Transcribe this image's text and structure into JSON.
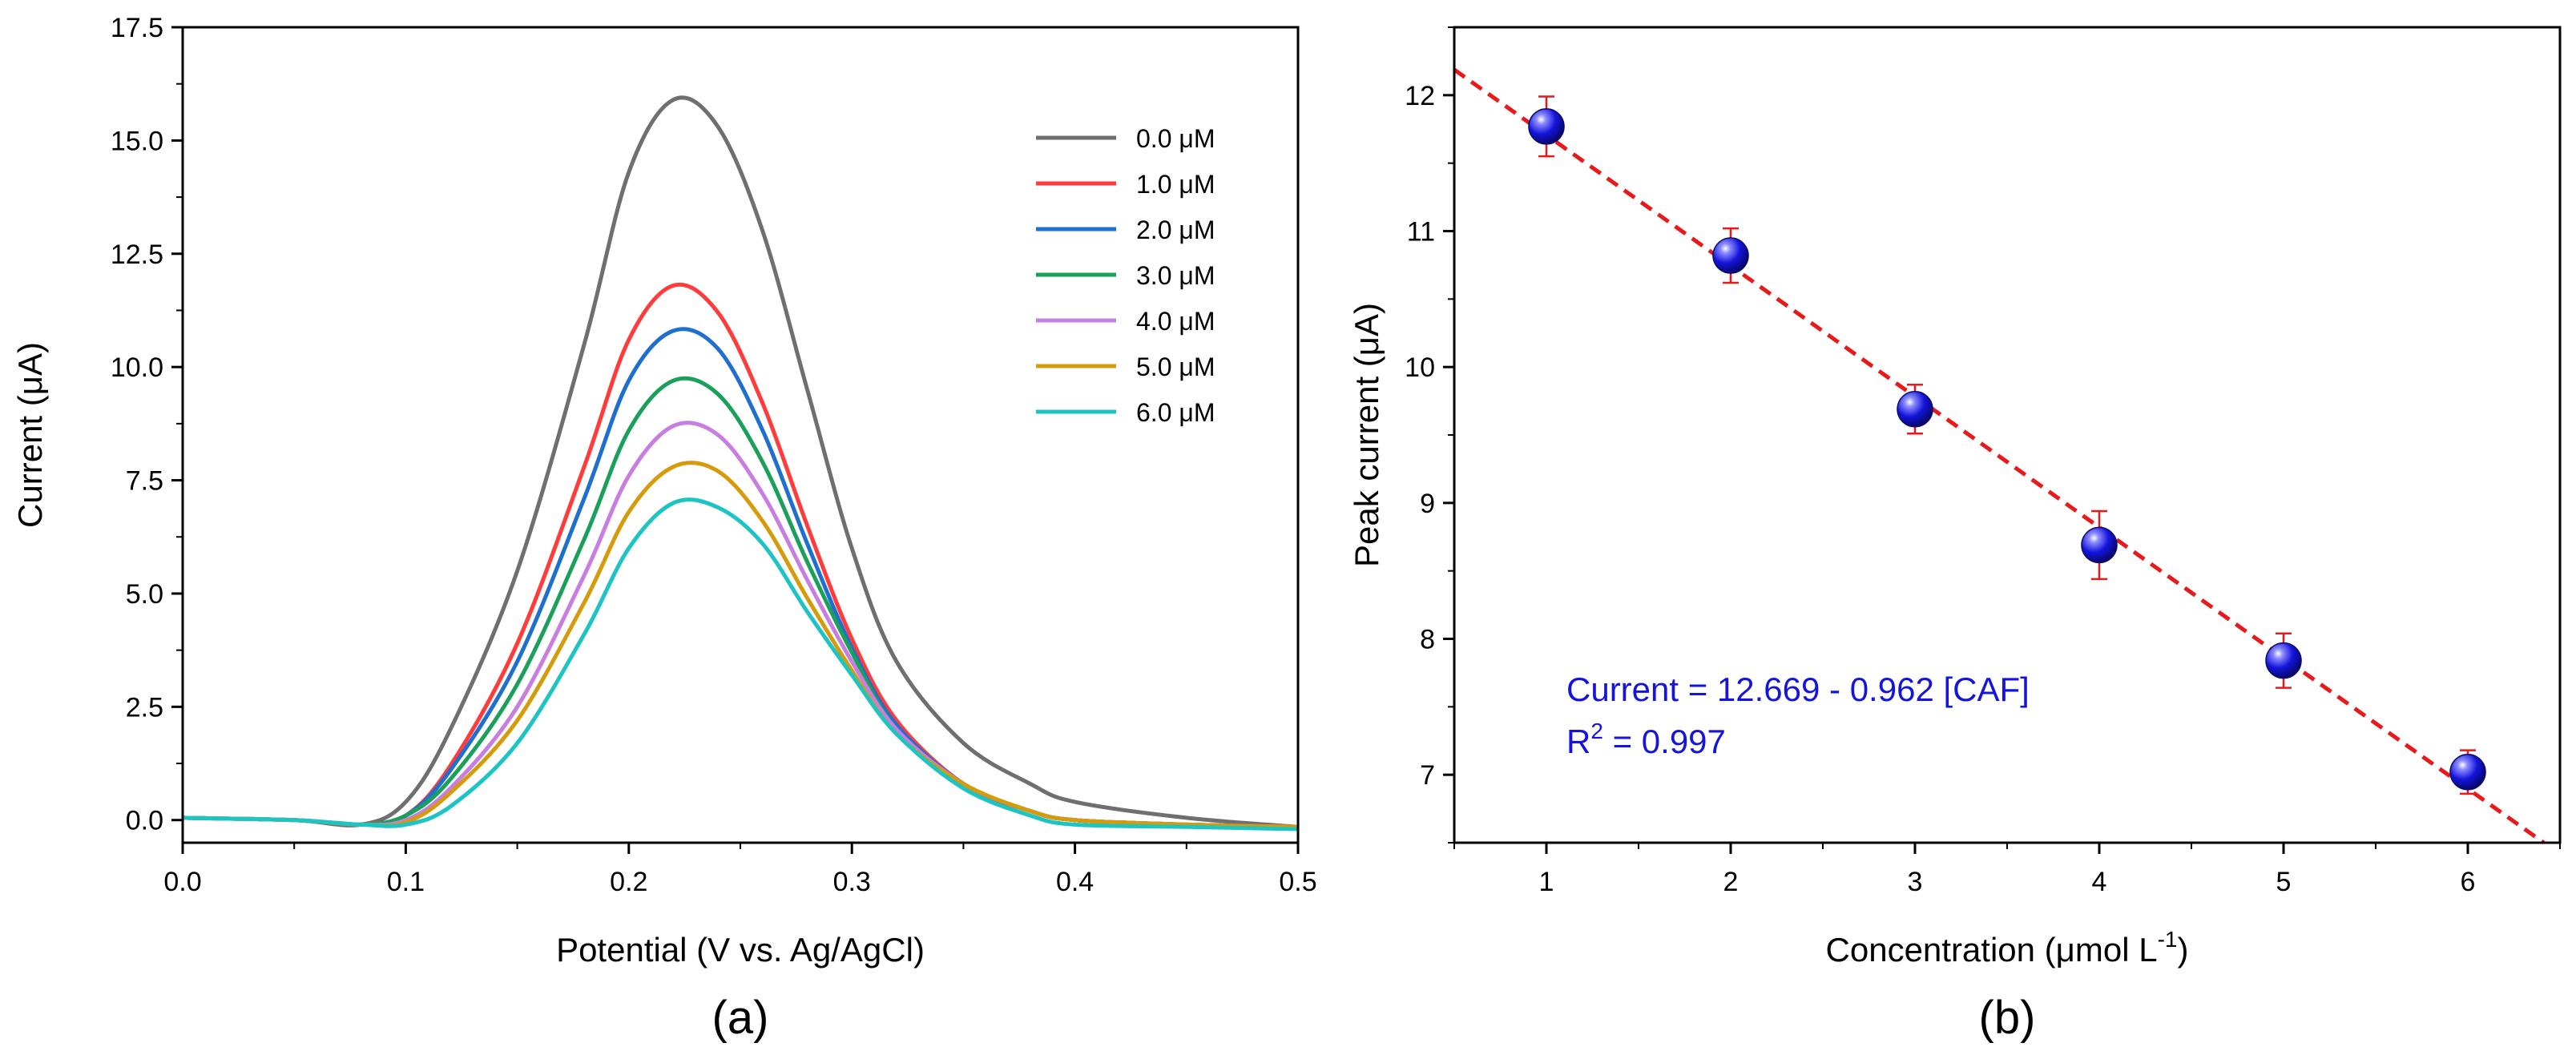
{
  "chart_data": [
    {
      "type": "line",
      "panel_label": "(a)",
      "xlabel": "Potential (V vs. Ag/AgCl)",
      "ylabel": "Current (μA)",
      "xlim": [
        0.0,
        0.5
      ],
      "ylim": [
        -0.5,
        17.5
      ],
      "xticks": [
        "0.0",
        "0.1",
        "0.2",
        "0.3",
        "0.4",
        "0.5"
      ],
      "yticks": [
        "0.0",
        "2.5",
        "5.0",
        "7.5",
        "10.0",
        "12.5",
        "15.0",
        "17.5"
      ],
      "grid": false,
      "legend_position": "top-right",
      "x": [
        0.0,
        0.05,
        0.08,
        0.1,
        0.12,
        0.15,
        0.18,
        0.2,
        0.22,
        0.24,
        0.26,
        0.28,
        0.3,
        0.32,
        0.35,
        0.38,
        0.4,
        0.45,
        0.5
      ],
      "series": [
        {
          "name": "0.0 μM",
          "color": "#6f6f6f",
          "values": [
            0.05,
            0.0,
            -0.1,
            0.4,
            2.0,
            5.5,
            10.5,
            14.3,
            15.9,
            15.3,
            13.0,
            9.5,
            6.0,
            3.5,
            1.7,
            0.8,
            0.4,
            0.05,
            -0.15
          ]
        },
        {
          "name": "1.0 μM",
          "color": "#ff3b3b",
          "values": [
            0.05,
            0.0,
            -0.1,
            0.1,
            1.2,
            3.9,
            7.8,
            10.6,
            11.8,
            11.2,
            9.2,
            6.5,
            4.0,
            2.2,
            0.8,
            0.2,
            0.0,
            -0.1,
            -0.15
          ]
        },
        {
          "name": "2.0 μM",
          "color": "#1f6fd1",
          "values": [
            0.05,
            0.0,
            -0.1,
            0.1,
            1.1,
            3.5,
            7.1,
            9.7,
            10.8,
            10.4,
            8.6,
            6.1,
            3.8,
            2.1,
            0.8,
            0.2,
            0.0,
            -0.1,
            -0.15
          ]
        },
        {
          "name": "3.0 μM",
          "color": "#1aa05a",
          "values": [
            0.05,
            0.0,
            -0.1,
            0.1,
            0.9,
            3.0,
            6.2,
            8.6,
            9.7,
            9.4,
            7.9,
            5.7,
            3.7,
            2.0,
            0.8,
            0.2,
            0.0,
            -0.1,
            -0.15
          ]
        },
        {
          "name": "4.0 μM",
          "color": "#c77ee0",
          "values": [
            0.05,
            0.0,
            -0.1,
            0.0,
            0.7,
            2.5,
            5.4,
            7.6,
            8.7,
            8.5,
            7.2,
            5.3,
            3.5,
            2.0,
            0.8,
            0.2,
            0.0,
            -0.1,
            -0.15
          ]
        },
        {
          "name": "5.0 μM",
          "color": "#d59b0a",
          "values": [
            0.05,
            0.0,
            -0.1,
            -0.05,
            0.6,
            2.2,
            4.8,
            6.8,
            7.8,
            7.7,
            6.6,
            4.9,
            3.3,
            1.9,
            0.8,
            0.2,
            0.0,
            -0.1,
            -0.15
          ]
        },
        {
          "name": "6.0 μM",
          "color": "#1cc4c4",
          "values": [
            0.05,
            0.0,
            -0.1,
            -0.1,
            0.3,
            1.7,
            4.1,
            6.0,
            7.0,
            6.9,
            6.1,
            4.6,
            3.2,
            1.9,
            0.7,
            0.1,
            -0.1,
            -0.15,
            -0.2
          ]
        }
      ]
    },
    {
      "type": "scatter",
      "panel_label": "(b)",
      "xlabel_main": "Concentration (μmol L",
      "xlabel_sup": "-1",
      "xlabel_end": ")",
      "ylabel": "Peak current (μA)",
      "xlim": [
        0.5,
        6.5
      ],
      "ylim": [
        6.5,
        12.5
      ],
      "xticks": [
        "1",
        "2",
        "3",
        "4",
        "5",
        "6"
      ],
      "yticks": [
        "7",
        "8",
        "9",
        "10",
        "11",
        "12"
      ],
      "grid": false,
      "points": [
        {
          "x": 1,
          "y": 11.77,
          "err": 0.22
        },
        {
          "x": 2,
          "y": 10.82,
          "err": 0.2
        },
        {
          "x": 3,
          "y": 9.69,
          "err": 0.18
        },
        {
          "x": 4,
          "y": 8.69,
          "err": 0.25
        },
        {
          "x": 5,
          "y": 7.84,
          "err": 0.2
        },
        {
          "x": 6,
          "y": 7.02,
          "err": 0.16
        }
      ],
      "fit": {
        "intercept": 12.669,
        "slope": -0.962,
        "color": "#e8191b"
      },
      "equation": "Current = 12.669 - 0.962 [CAF]",
      "r2_label": "R",
      "r2_sup": "2",
      "r2_value": " = 0.997",
      "point_color": "#1414dc",
      "error_color": "#e8191b"
    }
  ]
}
